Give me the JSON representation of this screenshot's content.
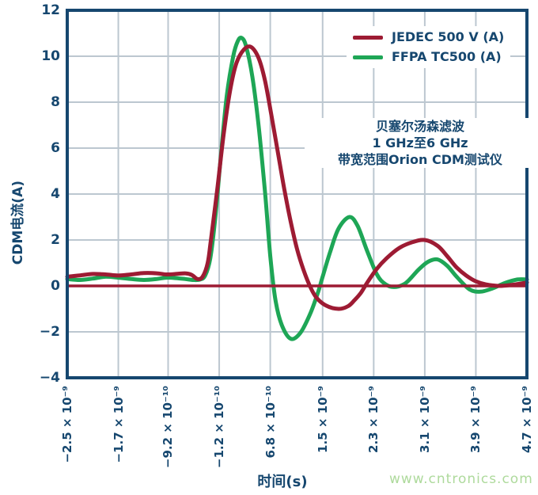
{
  "page": {
    "watermark": "www.cntronics.com"
  },
  "colors": {
    "axis_frame": "#16476f",
    "text": "#16476f",
    "grid": "#bcc7d0",
    "jedec_red": "#9d1b33",
    "ffpa_green": "#1ea656",
    "watermark_green": "#aeda9c",
    "background": "#ffffff"
  },
  "chart_data": {
    "type": "line",
    "title": "",
    "xlabel": "时间(s)",
    "ylabel": "CDM电流(A)",
    "x_units": "nanoseconds (axis labels shown in seconds, scientific notation)",
    "grid": true,
    "legend_position": "top-right-inside",
    "x_axis": {
      "min": -2.5,
      "max": 4.7,
      "ticks": [
        {
          "value": -2.5,
          "label": "−2.5 × 10⁻⁹"
        },
        {
          "value": -1.7,
          "label": "−1.7 × 10⁻⁹"
        },
        {
          "value": -0.92,
          "label": "−9.2 × 10⁻¹⁰"
        },
        {
          "value": -0.12,
          "label": "−1.2 × 10⁻¹⁰"
        },
        {
          "value": 0.68,
          "label": "6.8 × 10⁻¹⁰"
        },
        {
          "value": 1.5,
          "label": "1.5 × 10⁻⁹"
        },
        {
          "value": 2.3,
          "label": "2.3 × 10⁻⁹"
        },
        {
          "value": 3.1,
          "label": "3.1 × 10⁻⁹"
        },
        {
          "value": 3.9,
          "label": "3.9 × 10⁻⁹"
        },
        {
          "value": 4.7,
          "label": "4.7 × 10⁻⁹"
        }
      ]
    },
    "y_axis": {
      "min": -4,
      "max": 12,
      "ticks": [
        {
          "value": 12,
          "label": "12"
        },
        {
          "value": 10,
          "label": "10"
        },
        {
          "value": 8,
          "label": "8"
        },
        {
          "value": 6,
          "label": "6"
        },
        {
          "value": 4,
          "label": "4"
        },
        {
          "value": 2,
          "label": "2"
        },
        {
          "value": 0,
          "label": "0"
        },
        {
          "value": -2,
          "label": "−2"
        },
        {
          "value": -4,
          "label": "−4"
        }
      ]
    },
    "zero_line": {
      "value": 0,
      "color": "#9d1b33"
    },
    "annotation": {
      "lines": [
        "贝塞尔汤森滤波",
        "1 GHz至6 GHz",
        "带宽范围Orion CDM测试仪"
      ]
    },
    "series": [
      {
        "name": "JEDEC 500 V (A)",
        "color": "#9d1b33",
        "points": [
          [
            -2.5,
            0.4
          ],
          [
            -2.3,
            0.46
          ],
          [
            -2.1,
            0.52
          ],
          [
            -1.9,
            0.5
          ],
          [
            -1.7,
            0.45
          ],
          [
            -1.5,
            0.5
          ],
          [
            -1.3,
            0.56
          ],
          [
            -1.1,
            0.55
          ],
          [
            -0.95,
            0.5
          ],
          [
            -0.8,
            0.52
          ],
          [
            -0.65,
            0.55
          ],
          [
            -0.55,
            0.48
          ],
          [
            -0.46,
            0.3
          ],
          [
            -0.38,
            0.4
          ],
          [
            -0.3,
            1.0
          ],
          [
            -0.25,
            2.0
          ],
          [
            -0.15,
            4.2
          ],
          [
            -0.05,
            6.6
          ],
          [
            0.05,
            8.5
          ],
          [
            0.15,
            9.7
          ],
          [
            0.27,
            10.3
          ],
          [
            0.38,
            10.4
          ],
          [
            0.5,
            9.9
          ],
          [
            0.6,
            8.9
          ],
          [
            0.7,
            7.4
          ],
          [
            0.8,
            5.8
          ],
          [
            0.9,
            4.2
          ],
          [
            1.0,
            2.8
          ],
          [
            1.1,
            1.6
          ],
          [
            1.2,
            0.7
          ],
          [
            1.3,
            0.0
          ],
          [
            1.4,
            -0.5
          ],
          [
            1.55,
            -0.85
          ],
          [
            1.75,
            -1.0
          ],
          [
            1.9,
            -0.88
          ],
          [
            2.0,
            -0.62
          ],
          [
            2.1,
            -0.3
          ],
          [
            2.2,
            0.15
          ],
          [
            2.35,
            0.75
          ],
          [
            2.5,
            1.2
          ],
          [
            2.7,
            1.65
          ],
          [
            2.9,
            1.9
          ],
          [
            3.1,
            2.0
          ],
          [
            3.3,
            1.75
          ],
          [
            3.45,
            1.3
          ],
          [
            3.6,
            0.8
          ],
          [
            3.75,
            0.45
          ],
          [
            3.9,
            0.2
          ],
          [
            4.05,
            0.07
          ],
          [
            4.25,
            0.0
          ],
          [
            4.45,
            0.04
          ],
          [
            4.7,
            0.15
          ]
        ]
      },
      {
        "name": "FFPA TC500 (A)",
        "color": "#1ea656",
        "points": [
          [
            -2.5,
            0.3
          ],
          [
            -2.3,
            0.26
          ],
          [
            -2.1,
            0.32
          ],
          [
            -1.9,
            0.4
          ],
          [
            -1.7,
            0.36
          ],
          [
            -1.5,
            0.3
          ],
          [
            -1.3,
            0.26
          ],
          [
            -1.1,
            0.3
          ],
          [
            -0.95,
            0.36
          ],
          [
            -0.8,
            0.34
          ],
          [
            -0.65,
            0.3
          ],
          [
            -0.52,
            0.26
          ],
          [
            -0.42,
            0.28
          ],
          [
            -0.34,
            0.45
          ],
          [
            -0.26,
            1.2
          ],
          [
            -0.18,
            3.0
          ],
          [
            -0.09,
            5.8
          ],
          [
            0.0,
            8.3
          ],
          [
            0.1,
            10.0
          ],
          [
            0.17,
            10.65
          ],
          [
            0.23,
            10.8
          ],
          [
            0.3,
            10.45
          ],
          [
            0.4,
            9.1
          ],
          [
            0.5,
            6.9
          ],
          [
            0.6,
            4.0
          ],
          [
            0.68,
            1.3
          ],
          [
            0.76,
            -0.6
          ],
          [
            0.86,
            -1.7
          ],
          [
            1.0,
            -2.3
          ],
          [
            1.15,
            -2.05
          ],
          [
            1.3,
            -1.25
          ],
          [
            1.42,
            -0.35
          ],
          [
            1.5,
            0.4
          ],
          [
            1.62,
            1.5
          ],
          [
            1.75,
            2.5
          ],
          [
            1.92,
            3.0
          ],
          [
            2.05,
            2.6
          ],
          [
            2.2,
            1.5
          ],
          [
            2.35,
            0.5
          ],
          [
            2.48,
            0.08
          ],
          [
            2.62,
            -0.05
          ],
          [
            2.8,
            0.12
          ],
          [
            3.0,
            0.7
          ],
          [
            3.15,
            1.05
          ],
          [
            3.3,
            1.15
          ],
          [
            3.45,
            0.88
          ],
          [
            3.6,
            0.4
          ],
          [
            3.8,
            -0.15
          ],
          [
            3.97,
            -0.25
          ],
          [
            4.15,
            -0.12
          ],
          [
            4.35,
            0.12
          ],
          [
            4.55,
            0.28
          ],
          [
            4.7,
            0.28
          ]
        ]
      }
    ]
  }
}
